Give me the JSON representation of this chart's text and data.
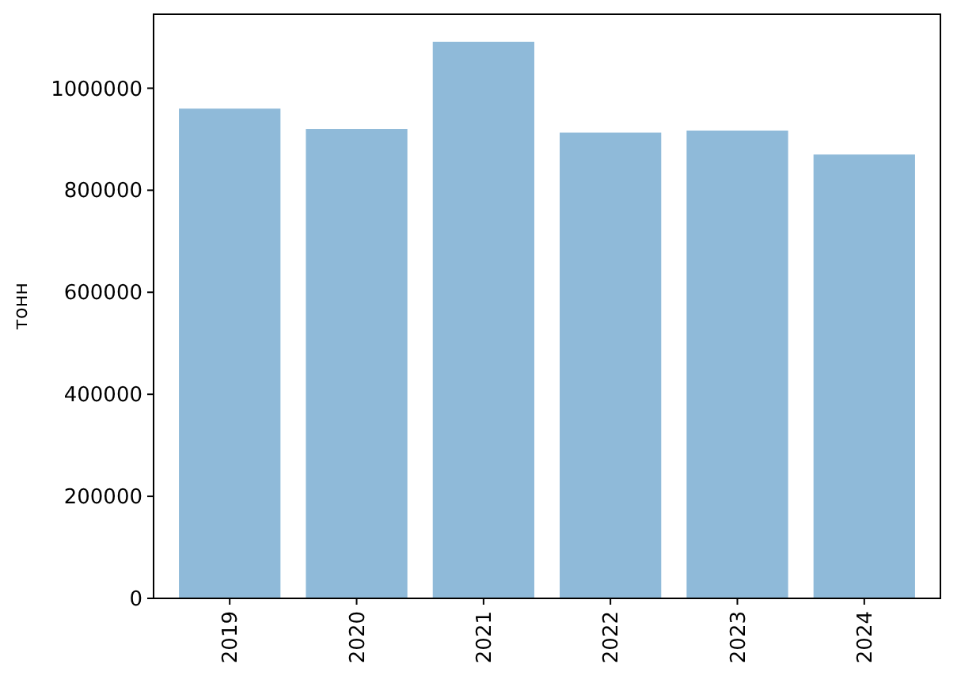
{
  "chart_data": {
    "type": "bar",
    "ylabel": "тонн",
    "categories": [
      "2019",
      "2020",
      "2021",
      "2022",
      "2023",
      "2024"
    ],
    "values": [
      960000,
      920000,
      1091000,
      913000,
      917000,
      870000
    ],
    "color": "#8fbad9",
    "ylim": [
      0,
      1145000
    ],
    "yticks": [
      0,
      200000,
      400000,
      600000,
      800000,
      1000000
    ]
  }
}
